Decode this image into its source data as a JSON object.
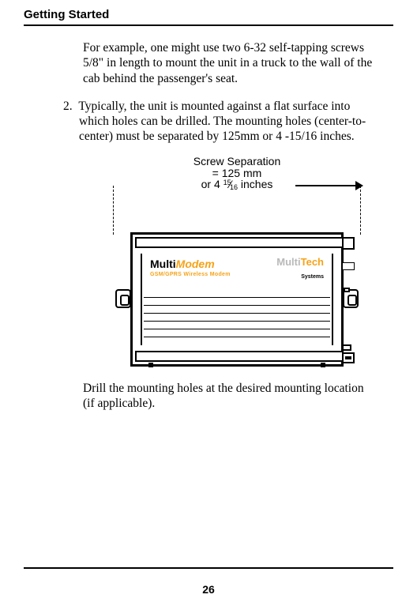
{
  "header": {
    "title": "Getting Started"
  },
  "body": {
    "para1": "For example, one might use two 6-32 self-tapping screws 5/8\" in length to mount the unit in a truck to the wall of the cab behind the passenger's seat.",
    "step2": "2. Typically, the unit is mounted against a flat surface into which holes can be drilled.  The mounting holes (center-to-center) must be separated by 125mm or 4 -15/16 inches.",
    "para2": "Drill the mounting holes at the desired mounting location (if applicable)."
  },
  "figure": {
    "label_line1": "Screw Separation",
    "label_line2": "= 125 mm",
    "label_line3_pre": "or 4 ",
    "label_line3_num": "15",
    "label_line3_den": "16",
    "label_line3_post": " inches",
    "device": {
      "left_brand1": "Multi",
      "left_brand2": "Modem",
      "left_sub": "GSM/GPRS Wireless Modem",
      "right_brand1": "Multi",
      "right_brand2": "Tech",
      "right_sub": "Systems"
    }
  },
  "footer": {
    "page": "26"
  },
  "style": {
    "accent_orange": "#f5a318",
    "grey": "#b9b9b9"
  }
}
